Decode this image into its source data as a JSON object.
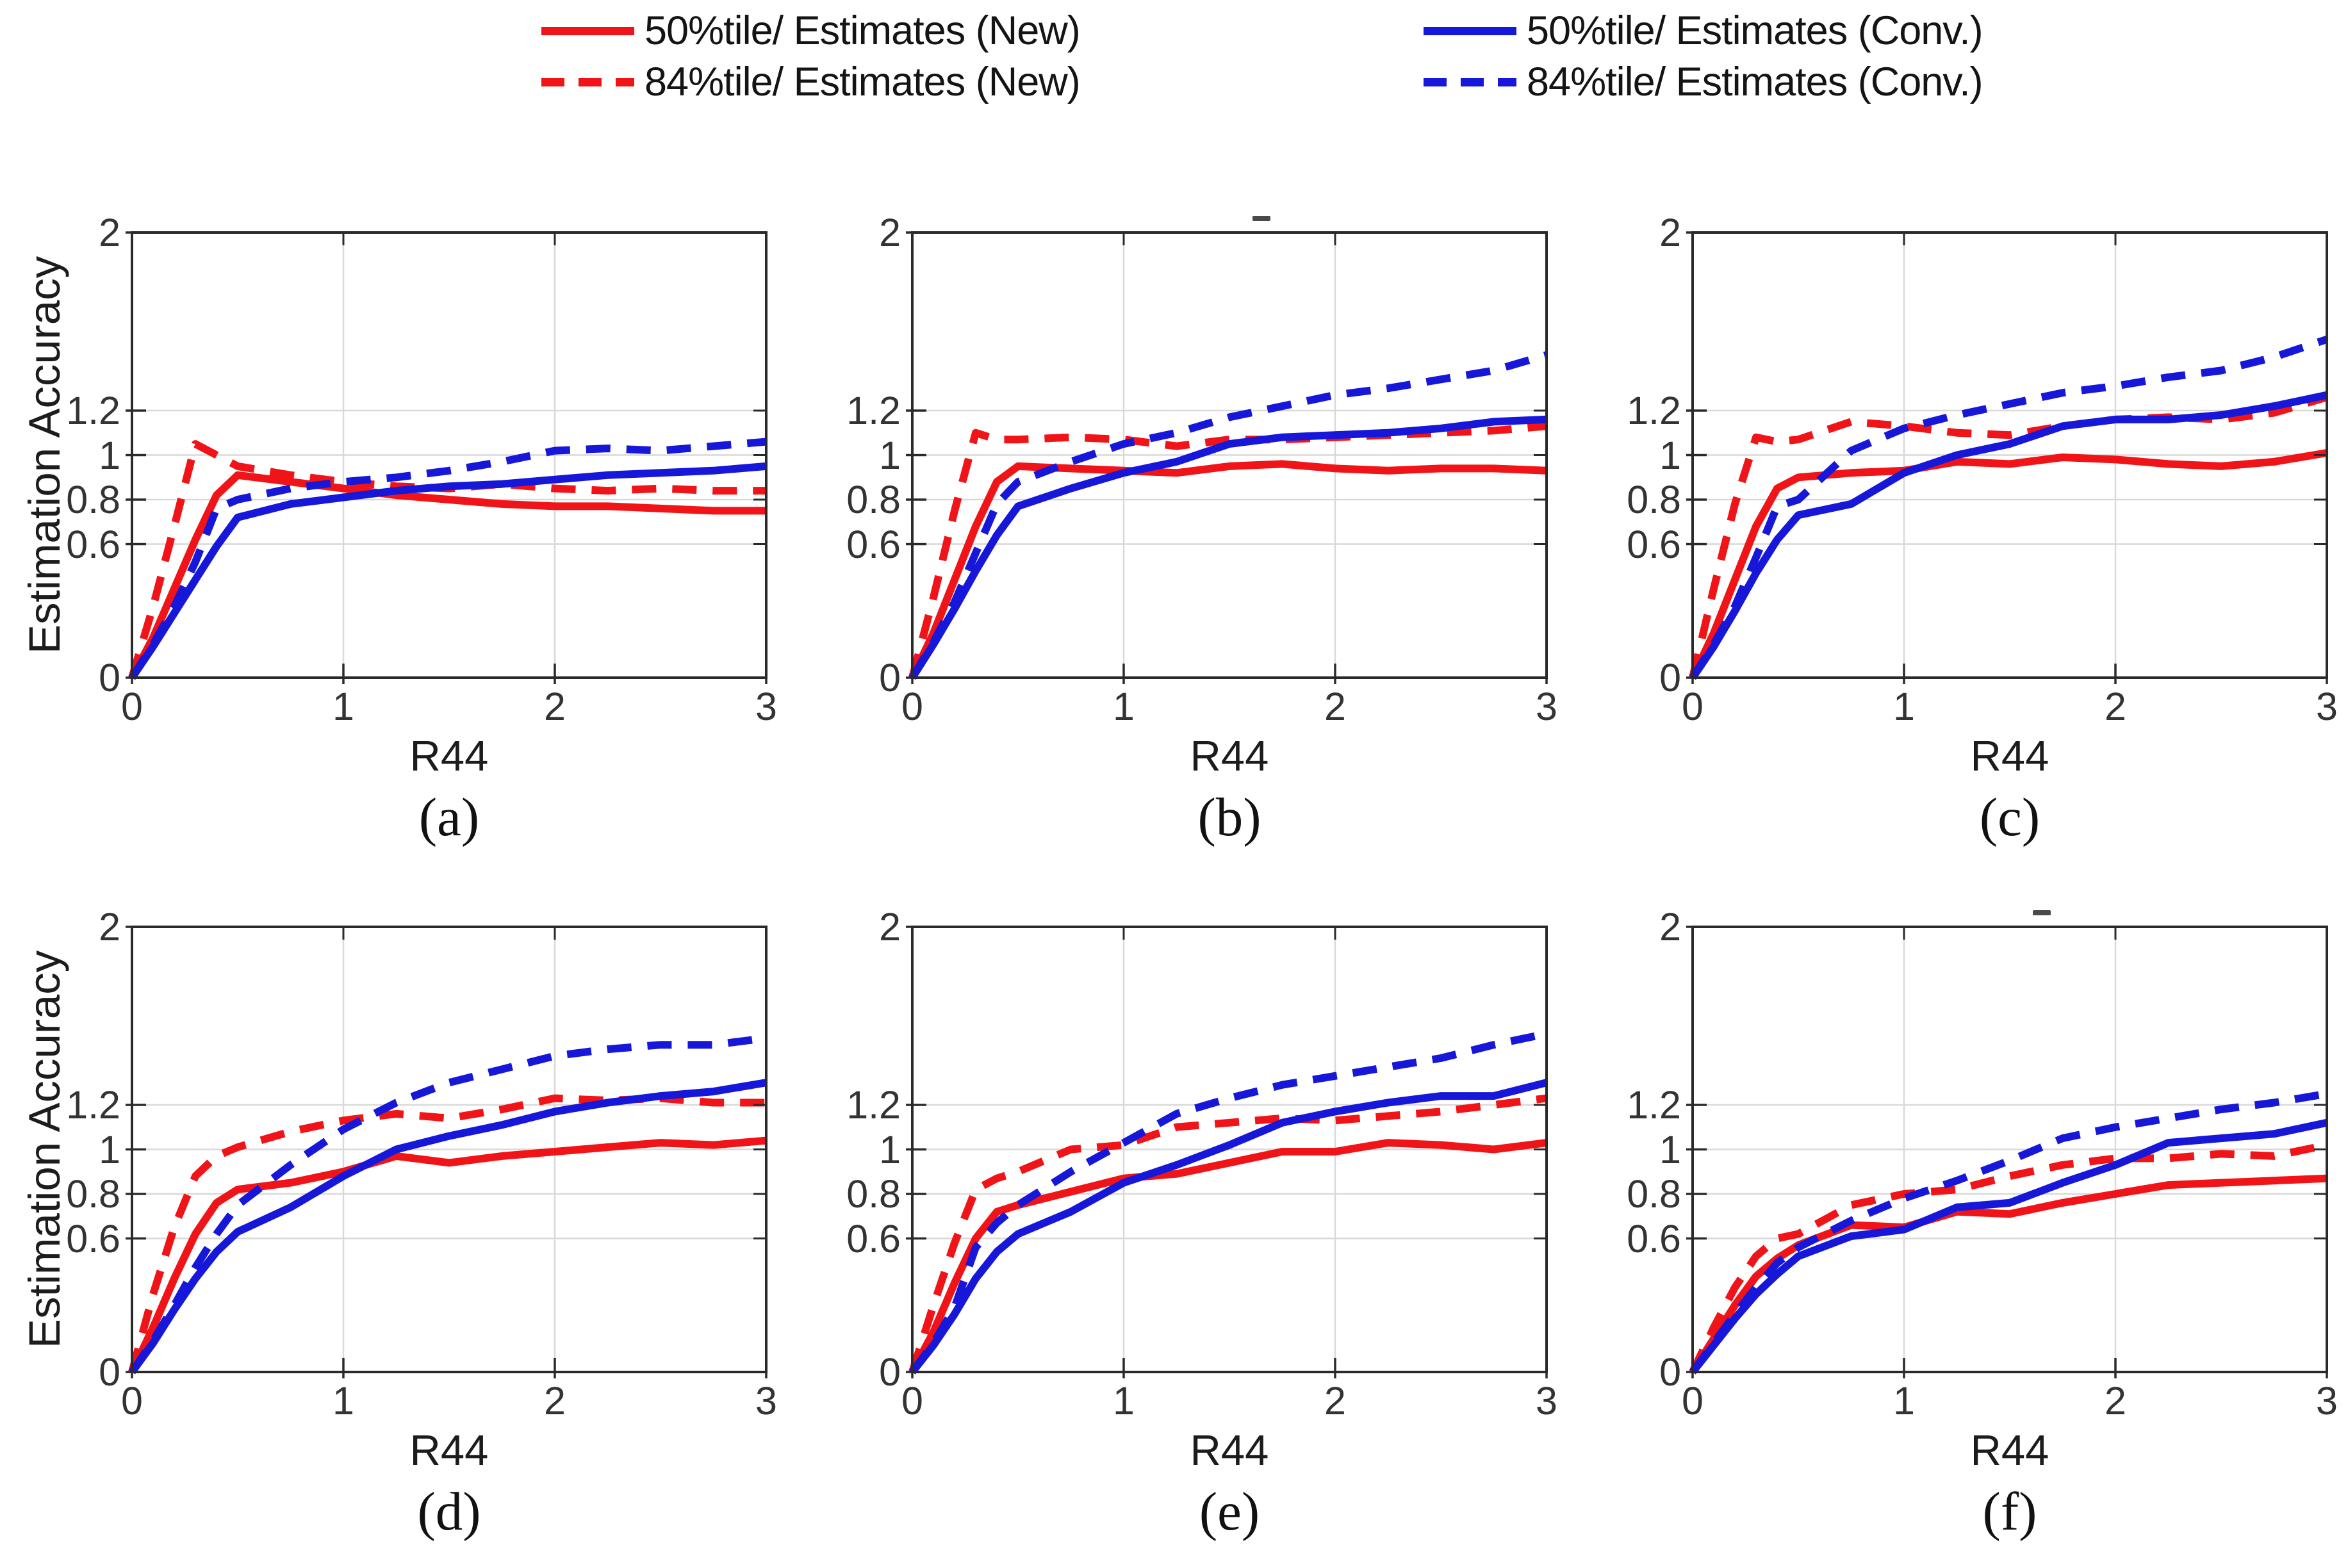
{
  "figure": {
    "background": "#ffffff"
  },
  "colors": {
    "new": "#f01418",
    "conv": "#1717d9",
    "grid": "#d9d9d9",
    "axis": "#2a2a2a",
    "tick_text": "#333333",
    "label_text": "#1c1c1c"
  },
  "legend": {
    "items": [
      {
        "label": "50%tile/ Estimates (New)",
        "color_key": "new",
        "style": "solid"
      },
      {
        "label": "84%tile/ Estimates (New)",
        "color_key": "new",
        "style": "dashed"
      },
      {
        "label": "50%tile/ Estimates (Conv.)",
        "color_key": "conv",
        "style": "solid"
      },
      {
        "label": "84%tile/ Estimates (Conv.)",
        "color_key": "conv",
        "style": "dashed"
      }
    ]
  },
  "axes": {
    "xlabel": "R44",
    "ylabel": "Estimation Accuracy",
    "xlim": [
      0,
      3
    ],
    "ylim": [
      0,
      2
    ],
    "xticks": [
      0,
      1,
      2,
      3
    ],
    "yticks": [
      0,
      0.6,
      0.8,
      1,
      1.2,
      2
    ],
    "xtick_labels": [
      "0",
      "1",
      "2",
      "3"
    ],
    "ytick_labels": [
      "0",
      "0.6",
      "0.8",
      "1",
      "1.2",
      "2"
    ],
    "grid_x": [
      1,
      2
    ],
    "grid_y": [
      0.6,
      0.8,
      1,
      1.2
    ],
    "grid_on": true
  },
  "chart_data": [
    {
      "type": "line",
      "label": "(a)",
      "has_ylabel": true,
      "top_artifact": false,
      "x": [
        0,
        0.1,
        0.2,
        0.3,
        0.4,
        0.5,
        0.75,
        1,
        1.25,
        1.5,
        1.75,
        2,
        2.25,
        2.5,
        2.75,
        3
      ],
      "series": [
        {
          "name": "50%tile/ Estimates (New)",
          "key": "new50",
          "color_key": "new",
          "style": "solid",
          "values": [
            0,
            0.18,
            0.4,
            0.62,
            0.82,
            0.91,
            0.88,
            0.85,
            0.82,
            0.8,
            0.78,
            0.77,
            0.77,
            0.76,
            0.75,
            0.75
          ]
        },
        {
          "name": "84%tile/ Estimates (New)",
          "key": "new84",
          "color_key": "new",
          "style": "dashed",
          "values": [
            0,
            0.32,
            0.68,
            1.05,
            1.0,
            0.95,
            0.91,
            0.88,
            0.86,
            0.85,
            0.87,
            0.85,
            0.84,
            0.85,
            0.84,
            0.84
          ]
        },
        {
          "name": "50%tile/ Estimates (Conv.)",
          "key": "conv50",
          "color_key": "conv",
          "style": "solid",
          "values": [
            0,
            0.14,
            0.29,
            0.44,
            0.59,
            0.72,
            0.78,
            0.81,
            0.84,
            0.86,
            0.87,
            0.89,
            0.91,
            0.92,
            0.93,
            0.95
          ]
        },
        {
          "name": "84%tile/ Estimates (Conv.)",
          "key": "conv84",
          "color_key": "conv",
          "style": "dashed",
          "values": [
            0,
            0.15,
            0.32,
            0.52,
            0.76,
            0.8,
            0.85,
            0.88,
            0.9,
            0.93,
            0.97,
            1.02,
            1.03,
            1.02,
            1.04,
            1.06
          ]
        }
      ]
    },
    {
      "type": "line",
      "label": "(b)",
      "has_ylabel": false,
      "top_artifact": true,
      "x": [
        0,
        0.1,
        0.2,
        0.3,
        0.4,
        0.5,
        0.75,
        1,
        1.25,
        1.5,
        1.75,
        2,
        2.25,
        2.5,
        2.75,
        3
      ],
      "series": [
        {
          "name": "50%tile/ Estimates (New)",
          "key": "new50",
          "color_key": "new",
          "style": "solid",
          "values": [
            0,
            0.2,
            0.44,
            0.68,
            0.88,
            0.95,
            0.94,
            0.93,
            0.92,
            0.95,
            0.96,
            0.94,
            0.93,
            0.94,
            0.94,
            0.93
          ]
        },
        {
          "name": "84%tile/ Estimates (New)",
          "key": "new84",
          "color_key": "new",
          "style": "dashed",
          "values": [
            0,
            0.36,
            0.75,
            1.1,
            1.07,
            1.07,
            1.08,
            1.07,
            1.04,
            1.07,
            1.07,
            1.08,
            1.09,
            1.1,
            1.11,
            1.13
          ]
        },
        {
          "name": "50%tile/ Estimates (Conv.)",
          "key": "conv50",
          "color_key": "conv",
          "style": "solid",
          "values": [
            0,
            0.15,
            0.31,
            0.48,
            0.64,
            0.77,
            0.85,
            0.92,
            0.97,
            1.05,
            1.08,
            1.09,
            1.1,
            1.12,
            1.15,
            1.16
          ]
        },
        {
          "name": "84%tile/ Estimates (Conv.)",
          "key": "conv84",
          "color_key": "conv",
          "style": "dashed",
          "values": [
            0,
            0.16,
            0.34,
            0.56,
            0.78,
            0.88,
            0.97,
            1.05,
            1.1,
            1.17,
            1.22,
            1.27,
            1.3,
            1.34,
            1.38,
            1.45
          ]
        }
      ]
    },
    {
      "type": "line",
      "label": "(c)",
      "has_ylabel": false,
      "top_artifact": false,
      "x": [
        0,
        0.1,
        0.2,
        0.3,
        0.4,
        0.5,
        0.75,
        1,
        1.25,
        1.5,
        1.75,
        2,
        2.25,
        2.5,
        2.75,
        3
      ],
      "series": [
        {
          "name": "50%tile/ Estimates (New)",
          "key": "new50",
          "color_key": "new",
          "style": "solid",
          "values": [
            0,
            0.2,
            0.44,
            0.68,
            0.85,
            0.9,
            0.92,
            0.93,
            0.97,
            0.96,
            0.99,
            0.98,
            0.96,
            0.95,
            0.97,
            1.01
          ]
        },
        {
          "name": "84%tile/ Estimates (New)",
          "key": "new84",
          "color_key": "new",
          "style": "dashed",
          "values": [
            0,
            0.4,
            0.78,
            1.08,
            1.06,
            1.07,
            1.15,
            1.13,
            1.1,
            1.09,
            1.13,
            1.16,
            1.17,
            1.16,
            1.19,
            1.26
          ]
        },
        {
          "name": "50%tile/ Estimates (Conv.)",
          "key": "conv50",
          "color_key": "conv",
          "style": "solid",
          "values": [
            0,
            0.14,
            0.3,
            0.47,
            0.62,
            0.73,
            0.78,
            0.92,
            1.0,
            1.05,
            1.13,
            1.16,
            1.16,
            1.18,
            1.22,
            1.27
          ]
        },
        {
          "name": "84%tile/ Estimates (Conv.)",
          "key": "conv84",
          "color_key": "conv",
          "style": "dashed",
          "values": [
            0,
            0.15,
            0.32,
            0.54,
            0.77,
            0.8,
            1.02,
            1.12,
            1.18,
            1.23,
            1.28,
            1.31,
            1.35,
            1.38,
            1.44,
            1.52
          ]
        }
      ]
    },
    {
      "type": "line",
      "label": "(d)",
      "has_ylabel": true,
      "top_artifact": false,
      "x": [
        0,
        0.1,
        0.2,
        0.3,
        0.4,
        0.5,
        0.75,
        1,
        1.25,
        1.5,
        1.75,
        2,
        2.25,
        2.5,
        2.75,
        3
      ],
      "series": [
        {
          "name": "50%tile/ Estimates (New)",
          "key": "new50",
          "color_key": "new",
          "style": "solid",
          "values": [
            0,
            0.2,
            0.42,
            0.62,
            0.76,
            0.82,
            0.85,
            0.9,
            0.97,
            0.94,
            0.97,
            0.99,
            1.01,
            1.03,
            1.02,
            1.04
          ]
        },
        {
          "name": "84%tile/ Estimates (New)",
          "key": "new84",
          "color_key": "new",
          "style": "dashed",
          "values": [
            0,
            0.35,
            0.65,
            0.88,
            0.97,
            1.01,
            1.08,
            1.13,
            1.16,
            1.14,
            1.18,
            1.23,
            1.22,
            1.23,
            1.21,
            1.21
          ]
        },
        {
          "name": "50%tile/ Estimates (Conv.)",
          "key": "conv50",
          "color_key": "conv",
          "style": "solid",
          "values": [
            0,
            0.13,
            0.28,
            0.42,
            0.54,
            0.63,
            0.74,
            0.88,
            1.0,
            1.06,
            1.11,
            1.17,
            1.21,
            1.24,
            1.26,
            1.3
          ]
        },
        {
          "name": "84%tile/ Estimates (Conv.)",
          "key": "conv84",
          "color_key": "conv",
          "style": "dashed",
          "values": [
            0,
            0.14,
            0.3,
            0.47,
            0.62,
            0.75,
            0.93,
            1.09,
            1.21,
            1.3,
            1.36,
            1.42,
            1.45,
            1.47,
            1.47,
            1.5
          ]
        }
      ]
    },
    {
      "type": "line",
      "label": "(e)",
      "has_ylabel": false,
      "top_artifact": false,
      "x": [
        0,
        0.1,
        0.2,
        0.3,
        0.4,
        0.5,
        0.75,
        1,
        1.25,
        1.5,
        1.75,
        2,
        2.25,
        2.5,
        2.75,
        3
      ],
      "series": [
        {
          "name": "50%tile/ Estimates (New)",
          "key": "new50",
          "color_key": "new",
          "style": "solid",
          "values": [
            0,
            0.18,
            0.4,
            0.6,
            0.72,
            0.75,
            0.81,
            0.87,
            0.89,
            0.94,
            0.99,
            0.99,
            1.03,
            1.02,
            1.0,
            1.03
          ]
        },
        {
          "name": "84%tile/ Estimates (New)",
          "key": "new84",
          "color_key": "new",
          "style": "dashed",
          "values": [
            0,
            0.3,
            0.58,
            0.82,
            0.87,
            0.9,
            1.0,
            1.02,
            1.1,
            1.12,
            1.14,
            1.13,
            1.15,
            1.17,
            1.2,
            1.23
          ]
        },
        {
          "name": "50%tile/ Estimates (Conv.)",
          "key": "conv50",
          "color_key": "conv",
          "style": "solid",
          "values": [
            0,
            0.12,
            0.26,
            0.42,
            0.54,
            0.62,
            0.72,
            0.85,
            0.93,
            1.02,
            1.12,
            1.17,
            1.21,
            1.24,
            1.24,
            1.3
          ]
        },
        {
          "name": "84%tile/ Estimates (Conv.)",
          "key": "conv84",
          "color_key": "conv",
          "style": "dashed",
          "values": [
            0,
            0.13,
            0.29,
            0.56,
            0.67,
            0.75,
            0.9,
            1.03,
            1.16,
            1.23,
            1.29,
            1.33,
            1.37,
            1.41,
            1.47,
            1.52
          ]
        }
      ]
    },
    {
      "type": "line",
      "label": "(f)",
      "has_ylabel": false,
      "top_artifact": true,
      "x": [
        0,
        0.1,
        0.2,
        0.3,
        0.4,
        0.5,
        0.75,
        1,
        1.25,
        1.5,
        1.75,
        2,
        2.25,
        2.5,
        2.75,
        3
      ],
      "series": [
        {
          "name": "50%tile/ Estimates (New)",
          "key": "new50",
          "color_key": "new",
          "style": "solid",
          "values": [
            0,
            0.15,
            0.3,
            0.43,
            0.51,
            0.57,
            0.66,
            0.65,
            0.72,
            0.71,
            0.76,
            0.8,
            0.84,
            0.85,
            0.86,
            0.87
          ]
        },
        {
          "name": "84%tile/ Estimates (New)",
          "key": "new84",
          "color_key": "new",
          "style": "dashed",
          "values": [
            0,
            0.2,
            0.38,
            0.52,
            0.6,
            0.62,
            0.75,
            0.8,
            0.82,
            0.88,
            0.93,
            0.96,
            0.96,
            0.98,
            0.97,
            1.02
          ]
        },
        {
          "name": "50%tile/ Estimates (Conv.)",
          "key": "conv50",
          "color_key": "conv",
          "style": "solid",
          "values": [
            0,
            0.12,
            0.24,
            0.35,
            0.44,
            0.52,
            0.61,
            0.64,
            0.74,
            0.76,
            0.85,
            0.93,
            1.03,
            1.05,
            1.07,
            1.12
          ]
        },
        {
          "name": "84%tile/ Estimates (Conv.)",
          "key": "conv84",
          "color_key": "conv",
          "style": "dashed",
          "values": [
            0,
            0.13,
            0.26,
            0.38,
            0.49,
            0.56,
            0.68,
            0.78,
            0.86,
            0.95,
            1.05,
            1.1,
            1.14,
            1.18,
            1.21,
            1.25
          ]
        }
      ]
    }
  ]
}
